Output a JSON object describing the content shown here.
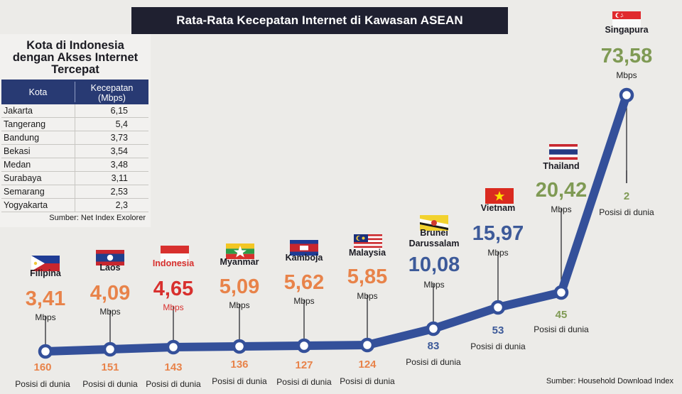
{
  "title": "Rata-Rata Kecepatan Internet di Kawasan ASEAN",
  "indonesia_table": {
    "title_lines": [
      "Kota di Indonesia",
      "dengan Akses Internet",
      "Tercepat"
    ],
    "header_city": "Kota",
    "header_speed_lines": [
      "Kecepatan",
      "(Mbps)"
    ],
    "rows": [
      {
        "city": "Jakarta",
        "speed": "6,15"
      },
      {
        "city": "Tangerang",
        "speed": "5,4"
      },
      {
        "city": "Bandung",
        "speed": "3,73"
      },
      {
        "city": "Bekasi",
        "speed": "3,54"
      },
      {
        "city": "Medan",
        "speed": "3,48"
      },
      {
        "city": "Surabaya",
        "speed": "3,11"
      },
      {
        "city": "Semarang",
        "speed": "2,53"
      },
      {
        "city": "Yogyakarta",
        "speed": "2,3"
      }
    ],
    "source": "Sumber: Net Index Exolorer"
  },
  "chart_source": "Sumber: Household Download Index",
  "unit": "Mbps",
  "rank_label": "Posisi di dunia",
  "colors": {
    "line": "#34509a",
    "dot_fill": "#ffffff",
    "orange": "#e8834a",
    "red": "#d8302e",
    "blue": "#3d5a99",
    "green": "#7f9a54",
    "dark": "#1c1c24"
  },
  "chart_data": {
    "type": "line",
    "title": "Rata-Rata Kecepatan Internet di Kawasan ASEAN",
    "unit": "Mbps",
    "categories": [
      "Filipina",
      "Laos",
      "Indonesia",
      "Myanmar",
      "Kamboja",
      "Malaysia",
      "Brunei Darussalam",
      "Vietnam",
      "Thailand",
      "Singapura"
    ],
    "values": [
      3.41,
      4.09,
      4.65,
      5.09,
      5.62,
      5.85,
      10.08,
      15.97,
      20.42,
      73.58
    ],
    "value_labels": [
      "3,41",
      "4,09",
      "4,65",
      "5,09",
      "5,62",
      "5,85",
      "10,08",
      "15,97",
      "20,42",
      "73,58"
    ],
    "world_rank": [
      160,
      151,
      143,
      136,
      127,
      124,
      83,
      53,
      45,
      2
    ],
    "flags": [
      "philippines-flag",
      "laos-flag",
      "indonesia-flag",
      "myanmar-flag",
      "cambodia-flag",
      "malaysia-flag",
      "brunei-flag",
      "vietnam-flag",
      "thailand-flag",
      "singapore-flag"
    ],
    "value_colors": [
      "orange",
      "orange",
      "red",
      "orange",
      "orange",
      "orange",
      "blue",
      "blue",
      "green",
      "green"
    ],
    "ylim": [
      0,
      80
    ],
    "grid": false,
    "legend": "none"
  }
}
